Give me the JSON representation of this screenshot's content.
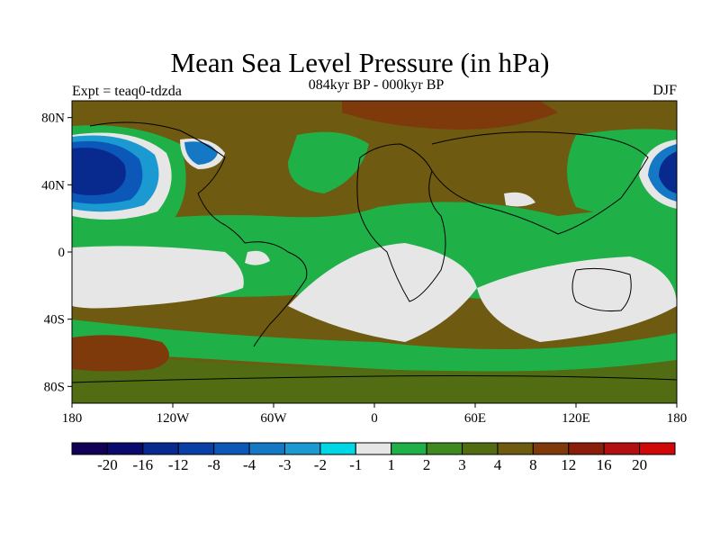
{
  "title": "Mean Sea Level Pressure (in hPa)",
  "subtitle": "084kyr BP - 000kyr BP",
  "expt": "Expt = teaq0-tdzda",
  "season": "DJF",
  "axes": {
    "lat_ticks": [
      "80N",
      "40N",
      "0",
      "40S",
      "80S"
    ],
    "lon_ticks": [
      "180",
      "120W",
      "60W",
      "0",
      "60E",
      "120E",
      "180"
    ]
  },
  "colorbar": {
    "colors": [
      "#110055",
      "#0a0a6e",
      "#082a8e",
      "#0a3fa8",
      "#0b58b8",
      "#1478c4",
      "#1a9ad0",
      "#00d7e5",
      "#e6e6e6",
      "#20b048",
      "#3e8a20",
      "#516c12",
      "#6e5a10",
      "#7f3a0c",
      "#8a1e0a",
      "#b01010",
      "#d00808"
    ],
    "labels": [
      "-20",
      "-16",
      "-12",
      "-8",
      "-4",
      "-3",
      "-2",
      "-1",
      "1",
      "2",
      "3",
      "4",
      "8",
      "12",
      "16",
      "20"
    ]
  }
}
